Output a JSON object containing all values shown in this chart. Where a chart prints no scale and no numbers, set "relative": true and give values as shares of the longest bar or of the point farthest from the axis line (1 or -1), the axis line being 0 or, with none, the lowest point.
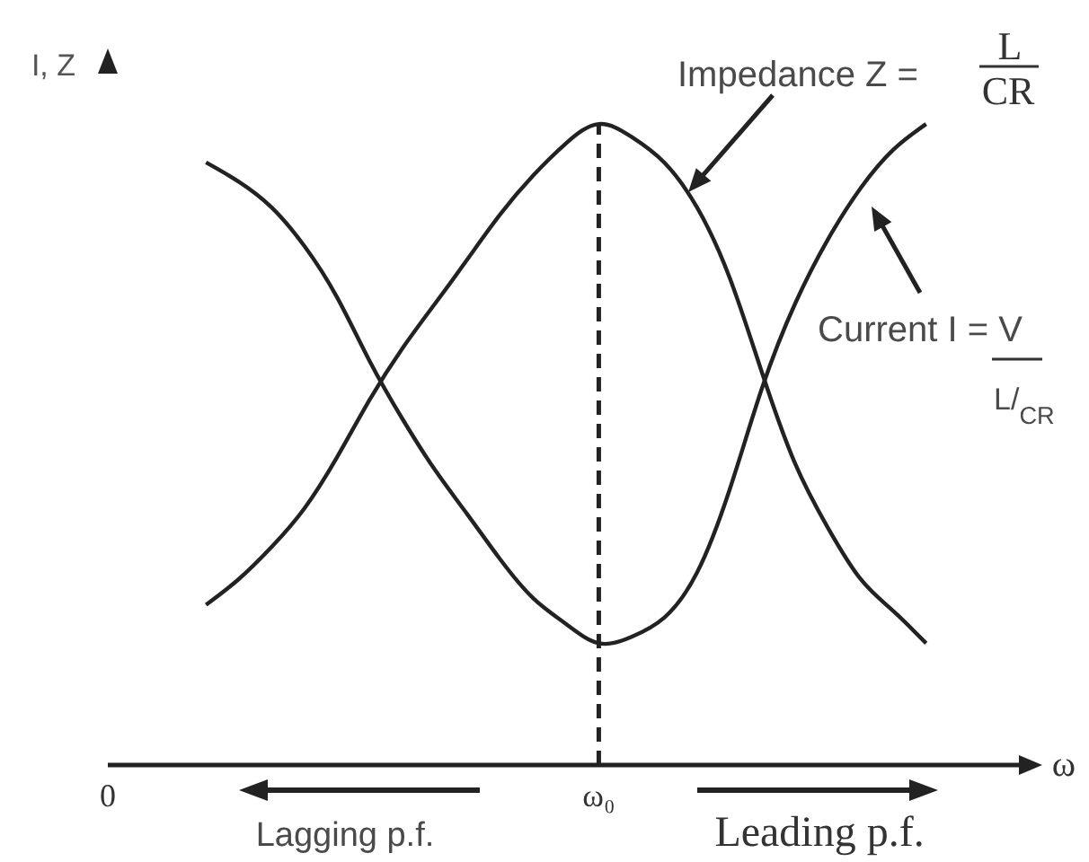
{
  "chart_data": {
    "type": "line",
    "xlabel": "ω",
    "ylabel": "I, Z",
    "relative": true,
    "categories": [
      "0",
      null,
      null,
      null,
      null,
      null,
      null,
      null,
      null,
      null,
      null,
      null,
      null,
      null,
      null,
      "ω₀",
      null,
      null,
      null,
      null,
      null,
      null,
      null,
      null,
      null,
      null,
      null,
      null,
      null
    ],
    "series": [
      {
        "color": "#222222",
        "values": [
          null,
          null,
          null,
          0.25,
          0.29,
          0.34,
          0.4,
          0.48,
          0.57,
          0.65,
          0.72,
          0.79,
          0.86,
          0.92,
          0.97,
          1.0,
          0.98,
          0.94,
          0.87,
          0.76,
          0.61,
          0.47,
          0.37,
          0.29,
          0.24,
          0.19,
          null,
          null,
          null
        ]
      },
      {
        "color": "#222222",
        "values": [
          null,
          null,
          null,
          0.94,
          0.91,
          0.87,
          0.81,
          0.73,
          0.63,
          0.54,
          0.46,
          0.39,
          0.32,
          0.26,
          0.22,
          0.19,
          0.2,
          0.23,
          0.3,
          0.43,
          0.59,
          0.72,
          0.82,
          0.9,
          0.96,
          1.0,
          null,
          null,
          null
        ]
      }
    ],
    "ref_lines": [
      {
        "axis": "x",
        "value": "ω₀",
        "color": "#222222",
        "line_style": "dashed"
      }
    ],
    "annotations": [
      "Impedance Z =",
      "L",
      "CR",
      "Current I = V",
      "L/$_{CR}$",
      "Lagging p.f.",
      "Leading p.f."
    ]
  }
}
